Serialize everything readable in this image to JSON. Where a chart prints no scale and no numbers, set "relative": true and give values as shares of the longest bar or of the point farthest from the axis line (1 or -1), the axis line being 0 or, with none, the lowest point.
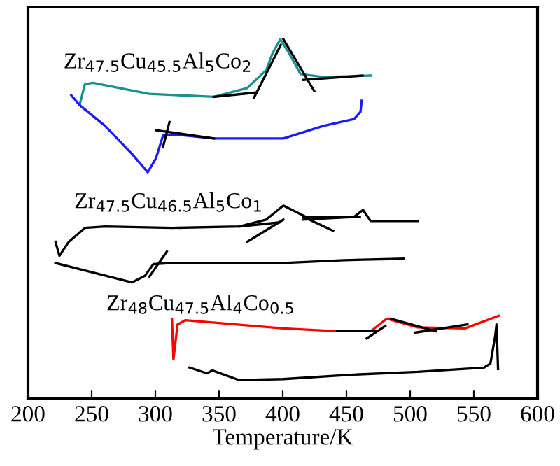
{
  "chart_data": {
    "type": "line",
    "relative": true,
    "xlabel": "Temperature/K",
    "xlim": [
      200,
      600
    ],
    "xticks": [
      200,
      250,
      300,
      350,
      400,
      450,
      500,
      550,
      600
    ],
    "tick_labels": "x",
    "grid": false,
    "legend": false,
    "marker": "none",
    "line_style": "solid",
    "series": [
      {
        "color": "#1a9090",
        "x": [
          240.5,
          244.7,
          251,
          295,
          346,
          372,
          387,
          392,
          398,
          405,
          414,
          432,
          469
        ],
        "values": [
          0.817,
          0.875,
          0.879,
          0.848,
          0.84,
          0.864,
          0.914,
          0.961,
          1.0,
          0.961,
          0.903,
          0.895,
          0.899
        ]
      },
      {
        "color": "#1a1aff",
        "x": [
          234,
          240.5,
          260.5,
          281.6,
          294,
          300.5,
          306,
          316,
          346,
          400.5,
          432,
          456,
          461,
          462
        ],
        "values": [
          0.844,
          0.817,
          0.759,
          0.681,
          0.63,
          0.669,
          0.732,
          0.735,
          0.724,
          0.724,
          0.759,
          0.778,
          0.798,
          0.829
        ]
      },
      {
        "color": "#000000",
        "x": [
          221.6,
          224.7,
          232,
          244.7,
          260.5,
          313,
          366,
          387,
          400.5,
          418,
          456,
          463,
          469,
          506
        ],
        "values": [
          0.436,
          0.397,
          0.436,
          0.475,
          0.479,
          0.475,
          0.479,
          0.498,
          0.537,
          0.506,
          0.506,
          0.525,
          0.494,
          0.494
        ]
      },
      {
        "color": "#000000",
        "x": [
          221.6,
          242.6,
          281.6,
          292,
          298.4,
          313,
          366,
          400.5,
          448,
          495
        ],
        "values": [
          0.377,
          0.358,
          0.323,
          0.342,
          0.374,
          0.377,
          0.377,
          0.377,
          0.385,
          0.389
        ]
      },
      {
        "color": "#ff0000",
        "x": [
          313,
          314.2,
          317.4,
          323.7,
          400.5,
          442.6,
          469,
          481.6,
          506,
          543,
          569.5
        ],
        "values": [
          0.222,
          0.109,
          0.206,
          0.218,
          0.195,
          0.187,
          0.187,
          0.222,
          0.198,
          0.195,
          0.23
        ]
      },
      {
        "color": "#000000",
        "x": [
          326.8,
          340.5,
          344.7,
          365.8,
          400.5,
          453,
          506,
          558,
          563,
          566.8,
          567.8,
          569
        ],
        "values": [
          0.086,
          0.07,
          0.078,
          0.051,
          0.054,
          0.066,
          0.074,
          0.086,
          0.097,
          0.175,
          0.206,
          0.082
        ]
      },
      {
        "color": "#000000",
        "x": [
          345.8,
          379.5
        ],
        "values": [
          0.84,
          0.852
        ]
      },
      {
        "color": "#000000",
        "x": [
          377.4,
          398.4
        ],
        "values": [
          0.837,
          0.984
        ]
      },
      {
        "color": "#000000",
        "x": [
          400.5,
          424.7
        ],
        "values": [
          1.0,
          0.856
        ]
      },
      {
        "color": "#000000",
        "x": [
          416.3,
          462.6
        ],
        "values": [
          0.887,
          0.899
        ]
      },
      {
        "color": "#000000",
        "x": [
          306,
          311.1
        ],
        "values": [
          0.7,
          0.77
        ]
      },
      {
        "color": "#000000",
        "x": [
          300.5,
          346
        ],
        "values": [
          0.747,
          0.724
        ]
      },
      {
        "color": "#000000",
        "x": [
          372,
          400.5
        ],
        "values": [
          0.436,
          0.498
        ]
      },
      {
        "color": "#000000",
        "x": [
          366,
          397
        ],
        "values": [
          0.479,
          0.49
        ]
      },
      {
        "color": "#000000",
        "x": [
          416,
          439.5
        ],
        "values": [
          0.506,
          0.467
        ]
      },
      {
        "color": "#000000",
        "x": [
          416,
          460.5
        ],
        "values": [
          0.498,
          0.506
        ]
      },
      {
        "color": "#000000",
        "x": [
          295.3,
          309
        ],
        "values": [
          0.339,
          0.409
        ]
      },
      {
        "color": "#000000",
        "x": [
          466,
          480.5
        ],
        "values": [
          0.167,
          0.202
        ]
      },
      {
        "color": "#000000",
        "x": [
          442.6,
          473
        ],
        "values": [
          0.187,
          0.187
        ]
      },
      {
        "color": "#000000",
        "x": [
          485,
          520
        ],
        "values": [
          0.222,
          0.187
        ]
      },
      {
        "color": "#000000",
        "x": [
          503.7,
          545
        ],
        "values": [
          0.183,
          0.206
        ]
      }
    ],
    "annotations": [
      "Zr$_{47.5}$Cu$_{45.5}$Al$_{5}$Co$_{2}$",
      "Zr$_{47.5}$Cu$_{46.5}$Al$_{5}$Co$_{1}$",
      "Zr$_{48}$Cu$_{47.5}$Al$_{4}$Co$_{0.5}$"
    ]
  }
}
